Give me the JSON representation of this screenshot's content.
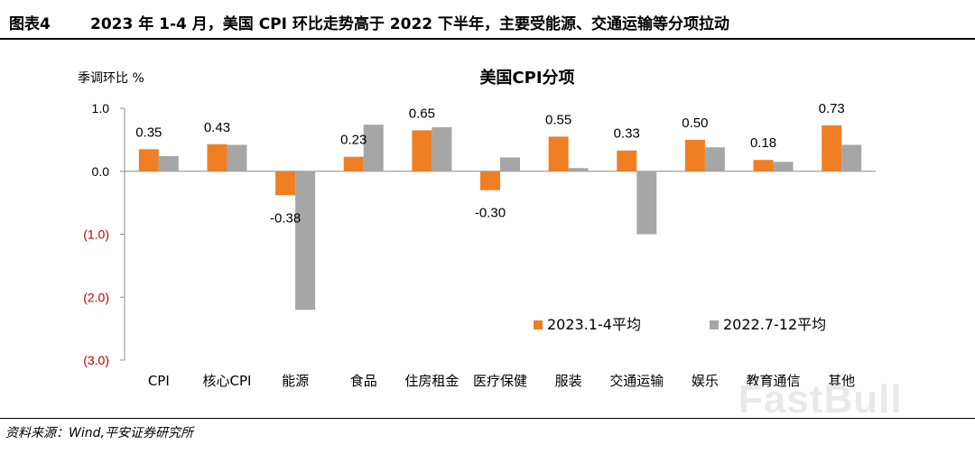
{
  "header": {
    "figure_no": "图表4",
    "title": "2023 年 1-4 月，美国 CPI 环比走势高于 2022 下半年，主要受能源、交通运输等分项拉动"
  },
  "footer": {
    "source": "资料来源：Wind,平安证券研究所"
  },
  "watermark": "FastBull",
  "chart_data": {
    "type": "bar",
    "title": "美国CPI分项",
    "ylabel": "季调环比 %",
    "ylim": [
      -3.0,
      1.0
    ],
    "yticks": [
      {
        "value": 1.0,
        "label": "1.0"
      },
      {
        "value": 0.0,
        "label": "0.0"
      },
      {
        "value": -1.0,
        "label": "(1.0)"
      },
      {
        "value": -2.0,
        "label": "(2.0)"
      },
      {
        "value": -3.0,
        "label": "(3.0)"
      }
    ],
    "negative_tick_color": "#c00000",
    "categories": [
      "CPI",
      "核心CPI",
      "能源",
      "食品",
      "住房租金",
      "医疗保健",
      "服装",
      "交通运输",
      "娱乐",
      "教育通信",
      "其他"
    ],
    "series": [
      {
        "name": "2023.1-4平均",
        "color": "#f07f23",
        "values": [
          0.35,
          0.43,
          -0.38,
          0.23,
          0.65,
          -0.3,
          0.55,
          0.33,
          0.5,
          0.18,
          0.73
        ],
        "labels": [
          "0.35",
          "0.43",
          "-0.38",
          "0.23",
          "0.65",
          "-0.30",
          "0.55",
          "0.33",
          "0.50",
          "0.18",
          "0.73"
        ]
      },
      {
        "name": "2022.7-12平均",
        "color": "#a6a6a6",
        "values": [
          0.24,
          0.42,
          -2.2,
          0.74,
          0.7,
          0.22,
          0.05,
          -1.0,
          0.38,
          0.15,
          0.42
        ]
      }
    ],
    "legend_position": "lower-right",
    "grid": false
  }
}
